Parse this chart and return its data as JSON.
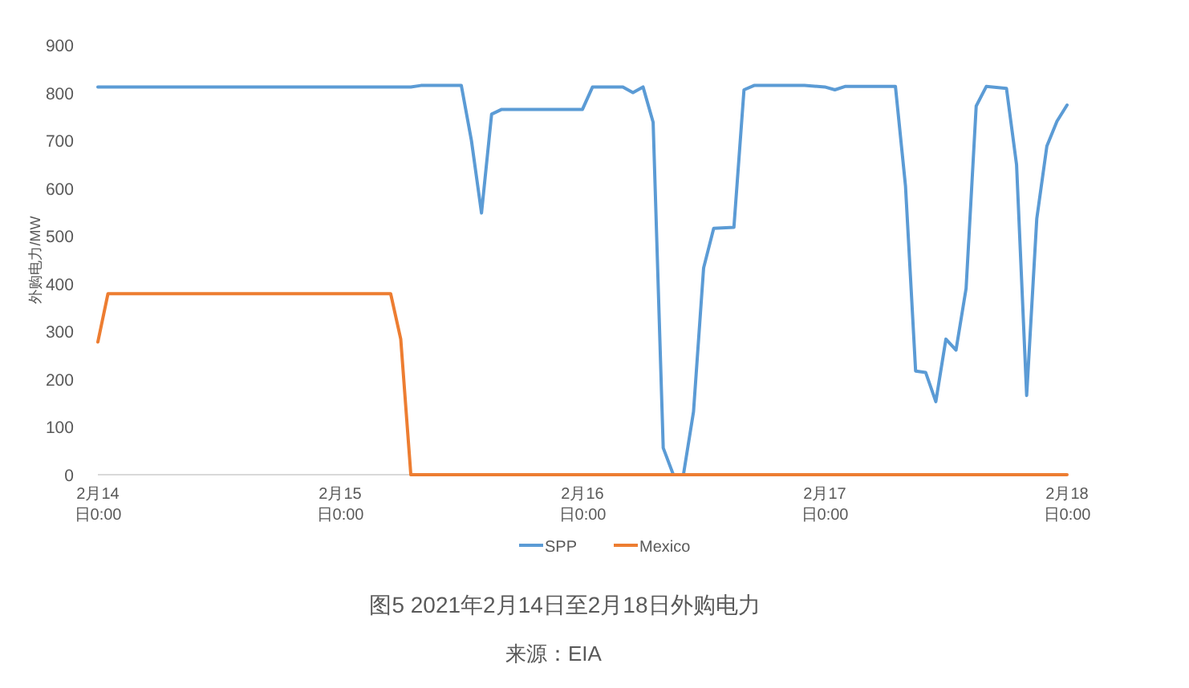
{
  "chart_data": {
    "type": "line",
    "title": "图5 2021年2月14日至2月18日外购电力",
    "ylabel": "外购电力/MW",
    "annotations": [
      "来源：EIA"
    ],
    "xlim": [
      "2021-02-14T00:00",
      "2021-02-18T00:00"
    ],
    "xticks": [
      {
        "value": "2021-02-14T00:00",
        "label": "2月14日0:00"
      },
      {
        "value": "2021-02-15T00:00",
        "label": "2月15日0:00"
      },
      {
        "value": "2021-02-16T00:00",
        "label": "2月16日0:00"
      },
      {
        "value": "2021-02-17T00:00",
        "label": "2月17日0:00"
      },
      {
        "value": "2021-02-18T00:00",
        "label": "2月18日0:00"
      }
    ],
    "ylim": [
      0,
      900
    ],
    "yticks": [
      0,
      100,
      200,
      300,
      400,
      500,
      600,
      700,
      800,
      900
    ],
    "grid": false,
    "legend": "bottom",
    "series": [
      {
        "name": "SPP",
        "color": "#5b9bd5",
        "x": [
          "2021-02-14T00:00",
          "2021-02-15T07:00",
          "2021-02-15T08:00",
          "2021-02-15T12:00",
          "2021-02-15T13:00",
          "2021-02-15T14:00",
          "2021-02-15T15:00",
          "2021-02-15T16:00",
          "2021-02-16T00:00",
          "2021-02-16T01:00",
          "2021-02-16T04:00",
          "2021-02-16T05:00",
          "2021-02-16T06:00",
          "2021-02-16T07:00",
          "2021-02-16T08:00",
          "2021-02-16T09:00",
          "2021-02-16T10:00",
          "2021-02-16T11:00",
          "2021-02-16T12:00",
          "2021-02-16T13:00",
          "2021-02-16T15:00",
          "2021-02-16T16:00",
          "2021-02-16T17:00",
          "2021-02-16T22:00",
          "2021-02-17T00:00",
          "2021-02-17T01:00",
          "2021-02-17T02:00",
          "2021-02-17T07:00",
          "2021-02-17T08:00",
          "2021-02-17T09:00",
          "2021-02-17T10:00",
          "2021-02-17T11:00",
          "2021-02-17T12:00",
          "2021-02-17T13:00",
          "2021-02-17T14:00",
          "2021-02-17T15:00",
          "2021-02-17T16:00",
          "2021-02-17T18:00",
          "2021-02-17T19:00",
          "2021-02-17T20:00",
          "2021-02-17T21:00",
          "2021-02-17T22:00",
          "2021-02-17T23:00",
          "2021-02-18T00:00"
        ],
        "values": [
          812,
          812,
          815,
          815,
          700,
          548,
          755,
          765,
          765,
          812,
          812,
          800,
          812,
          738,
          56,
          0,
          0,
          132,
          433,
          516,
          518,
          806,
          815,
          815,
          812,
          806,
          813,
          813,
          604,
          217,
          214,
          153,
          284,
          261,
          390,
          772,
          813,
          809,
          649,
          166,
          536,
          688,
          740,
          774
        ]
      },
      {
        "name": "Mexico",
        "color": "#ed7d31",
        "x": [
          "2021-02-14T00:00",
          "2021-02-14T01:00",
          "2021-02-15T05:00",
          "2021-02-15T06:00",
          "2021-02-15T07:00",
          "2021-02-18T00:00"
        ],
        "values": [
          278,
          379,
          379,
          284,
          0,
          0
        ]
      }
    ]
  }
}
